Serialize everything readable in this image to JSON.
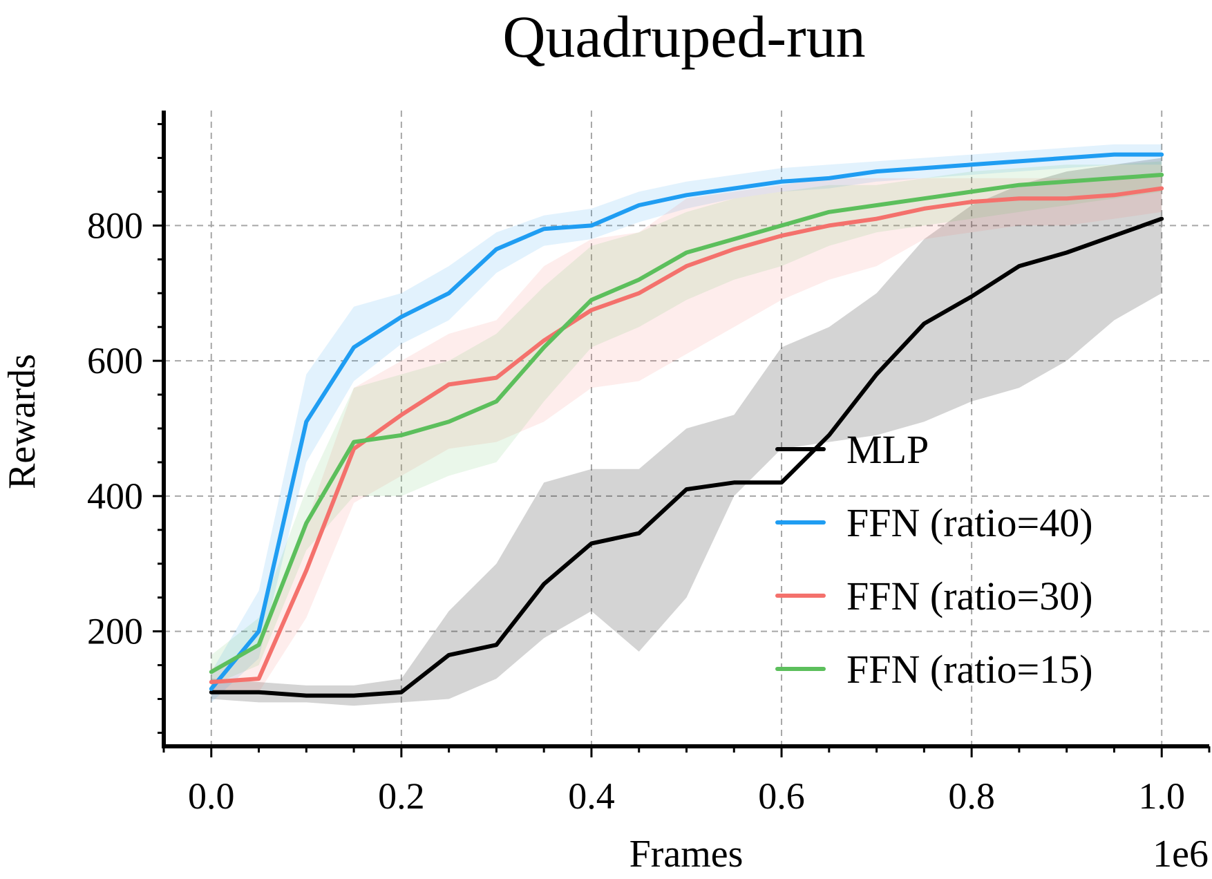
{
  "chart_data": {
    "type": "line",
    "title": "Quadruped-run",
    "xlabel": "Frames",
    "ylabel": "Rewards",
    "x_offset_label": "1e6",
    "xlim": [
      -0.05,
      1.05
    ],
    "ylim": [
      30,
      970
    ],
    "x_ticks": [
      0.0,
      0.2,
      0.4,
      0.6,
      0.8,
      1.0
    ],
    "x_tick_labels": [
      "0.0",
      "0.2",
      "0.4",
      "0.6",
      "0.8",
      "1.0"
    ],
    "y_ticks": [
      200,
      400,
      600,
      800
    ],
    "y_tick_labels": [
      "200",
      "400",
      "600",
      "800"
    ],
    "grid": true,
    "legend_position": "lower-right",
    "x": [
      0.0,
      0.05,
      0.1,
      0.15,
      0.2,
      0.25,
      0.3,
      0.35,
      0.4,
      0.45,
      0.5,
      0.55,
      0.6,
      0.65,
      0.7,
      0.75,
      0.8,
      0.85,
      0.9,
      0.95,
      1.0
    ],
    "series": [
      {
        "name": "MLP",
        "color": "#000000",
        "values": [
          110,
          110,
          105,
          105,
          110,
          165,
          180,
          270,
          330,
          345,
          410,
          420,
          420,
          490,
          580,
          655,
          695,
          740,
          760,
          785,
          810
        ],
        "band_lower": [
          100,
          95,
          95,
          90,
          95,
          100,
          130,
          190,
          230,
          170,
          250,
          400,
          470,
          480,
          490,
          510,
          540,
          560,
          600,
          660,
          700
        ],
        "band_upper": [
          130,
          125,
          120,
          120,
          130,
          230,
          300,
          420,
          440,
          440,
          500,
          520,
          620,
          650,
          700,
          780,
          830,
          860,
          880,
          890,
          900
        ]
      },
      {
        "name": "FFN (ratio=40)",
        "color": "#1f9df2",
        "values": [
          115,
          200,
          510,
          620,
          665,
          700,
          765,
          795,
          800,
          830,
          845,
          855,
          865,
          870,
          880,
          885,
          890,
          895,
          900,
          905,
          905
        ],
        "band_lower": [
          95,
          160,
          450,
          570,
          625,
          660,
          730,
          770,
          780,
          805,
          825,
          840,
          850,
          855,
          865,
          870,
          875,
          880,
          885,
          890,
          890
        ],
        "band_upper": [
          140,
          260,
          580,
          680,
          700,
          740,
          790,
          815,
          825,
          850,
          865,
          875,
          885,
          890,
          895,
          900,
          905,
          910,
          915,
          920,
          920
        ]
      },
      {
        "name": "FFN (ratio=30)",
        "color": "#f4716c",
        "values": [
          125,
          130,
          290,
          470,
          520,
          565,
          575,
          630,
          675,
          700,
          740,
          765,
          785,
          800,
          810,
          825,
          835,
          840,
          840,
          845,
          855
        ],
        "band_lower": [
          110,
          110,
          220,
          390,
          430,
          470,
          480,
          510,
          560,
          570,
          610,
          650,
          690,
          720,
          740,
          780,
          790,
          800,
          800,
          810,
          820
        ],
        "band_upper": [
          145,
          180,
          360,
          560,
          600,
          640,
          660,
          740,
          780,
          790,
          840,
          850,
          860,
          870,
          870,
          870,
          870,
          870,
          870,
          870,
          875
        ]
      },
      {
        "name": "FFN (ratio=15)",
        "color": "#5cbf5c",
        "values": [
          140,
          180,
          360,
          480,
          490,
          510,
          540,
          620,
          690,
          720,
          760,
          780,
          800,
          820,
          830,
          840,
          850,
          860,
          865,
          870,
          875
        ],
        "band_lower": [
          120,
          150,
          320,
          400,
          400,
          430,
          450,
          540,
          620,
          650,
          690,
          720,
          740,
          770,
          790,
          800,
          810,
          820,
          830,
          840,
          850
        ],
        "band_upper": [
          165,
          220,
          410,
          560,
          580,
          600,
          640,
          710,
          770,
          790,
          820,
          840,
          850,
          860,
          860,
          870,
          880,
          885,
          890,
          890,
          895
        ]
      }
    ]
  }
}
